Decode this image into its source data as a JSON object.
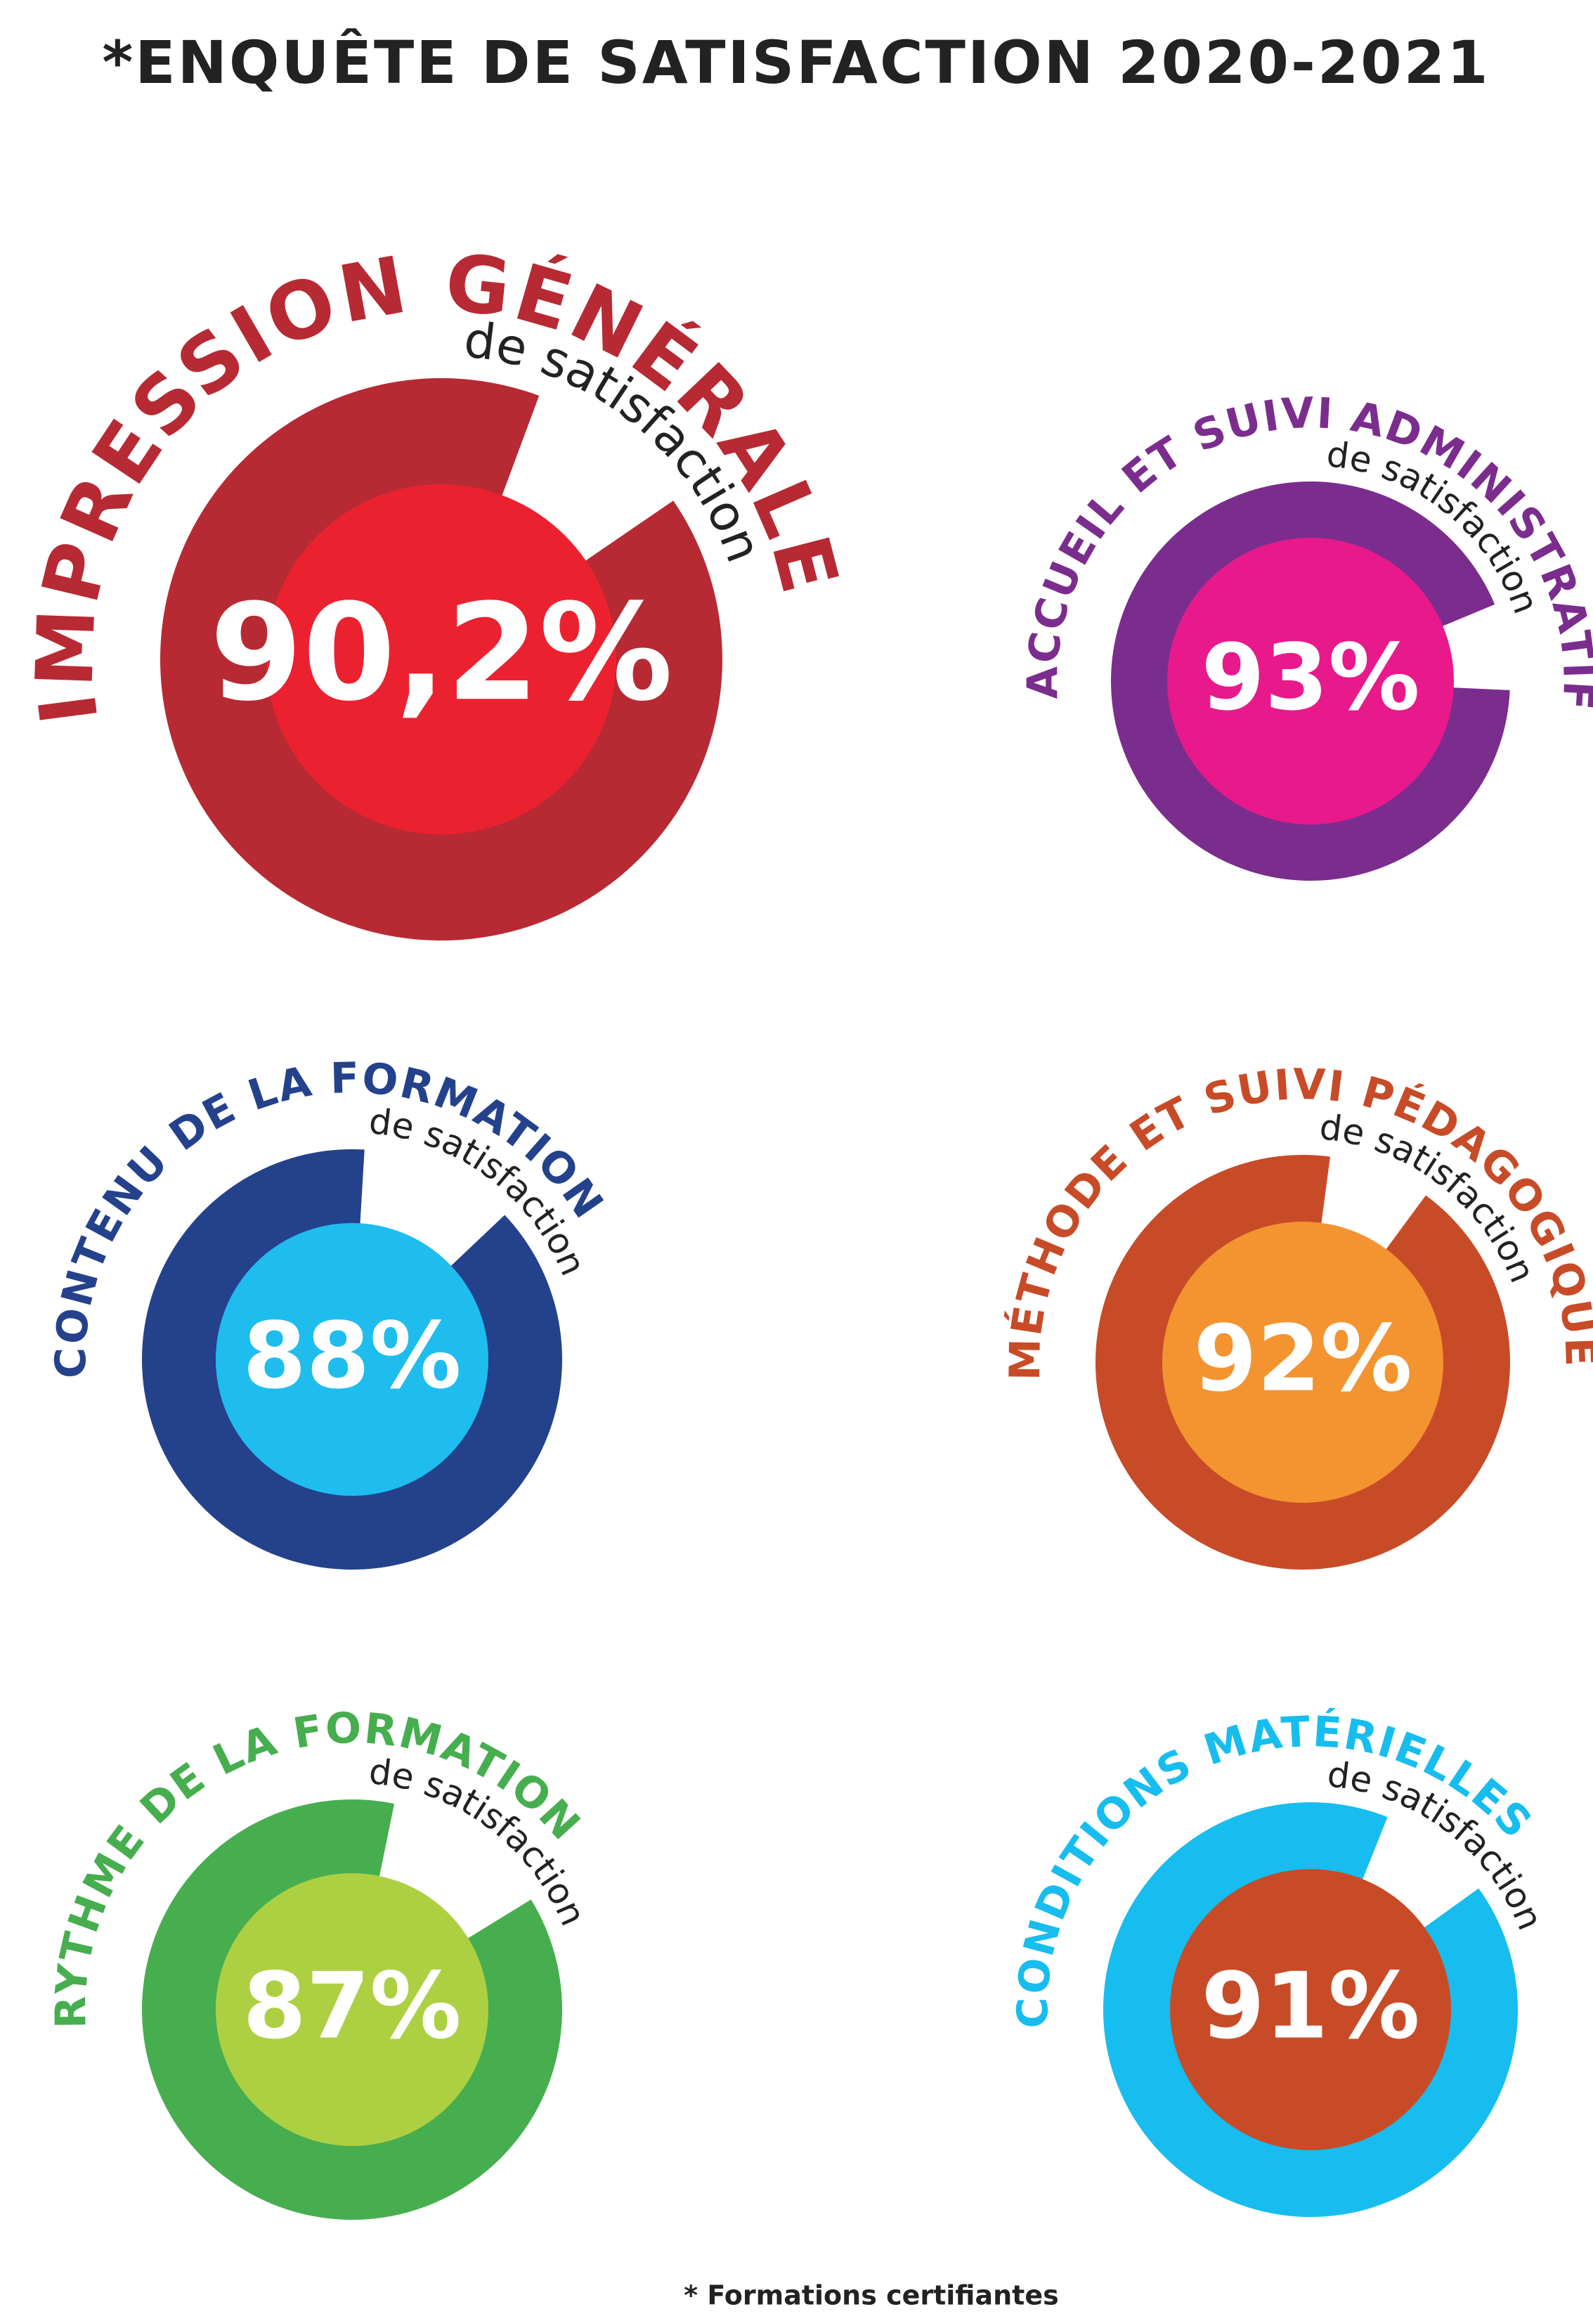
{
  "title": "*ENQUÊTE DE SATISFACTION 2020-2021",
  "chart_data": [
    {
      "type": "donut",
      "title": "IMPRESSION GÉNÉRALE",
      "subtitle": "de satisfaction",
      "values": [
        90.2
      ],
      "value_labels": [
        "90,2%"
      ],
      "color": "#b72a33",
      "center_color": "#ec2130"
    },
    {
      "type": "donut",
      "title": "ACCUEIL ET SUIVI ADMINISTRATIF",
      "subtitle": "de satisfaction",
      "values": [
        93
      ],
      "value_labels": [
        "93%"
      ],
      "color": "#7b2d8e",
      "center_color": "#e8198b"
    },
    {
      "type": "donut",
      "title": "CONTENU DE LA FORMATION",
      "subtitle": "de satisfaction",
      "values": [
        88
      ],
      "value_labels": [
        "88%"
      ],
      "color": "#24418c",
      "center_color": "#1ebdee"
    },
    {
      "type": "donut",
      "title": "MÉTHODE ET SUIVI PÉDAGOGIQUE",
      "subtitle": "de satisfaction",
      "values": [
        92
      ],
      "value_labels": [
        "92%"
      ],
      "color": "#c84b28",
      "center_color": "#f39431"
    },
    {
      "type": "donut",
      "title": "RYTHME DE LA FORMATION",
      "subtitle": "de satisfaction",
      "values": [
        87
      ],
      "value_labels": [
        "87%"
      ],
      "color": "#46ae4f",
      "center_color": "#add042"
    },
    {
      "type": "donut",
      "title": "CONDITIONS MATÉRIELLES",
      "subtitle": "de satisfaction",
      "values": [
        91
      ],
      "value_labels": [
        "91%"
      ],
      "color": "#17bdee",
      "center_color": "#c84b28"
    }
  ],
  "footnote": "* Formations certifiantes"
}
